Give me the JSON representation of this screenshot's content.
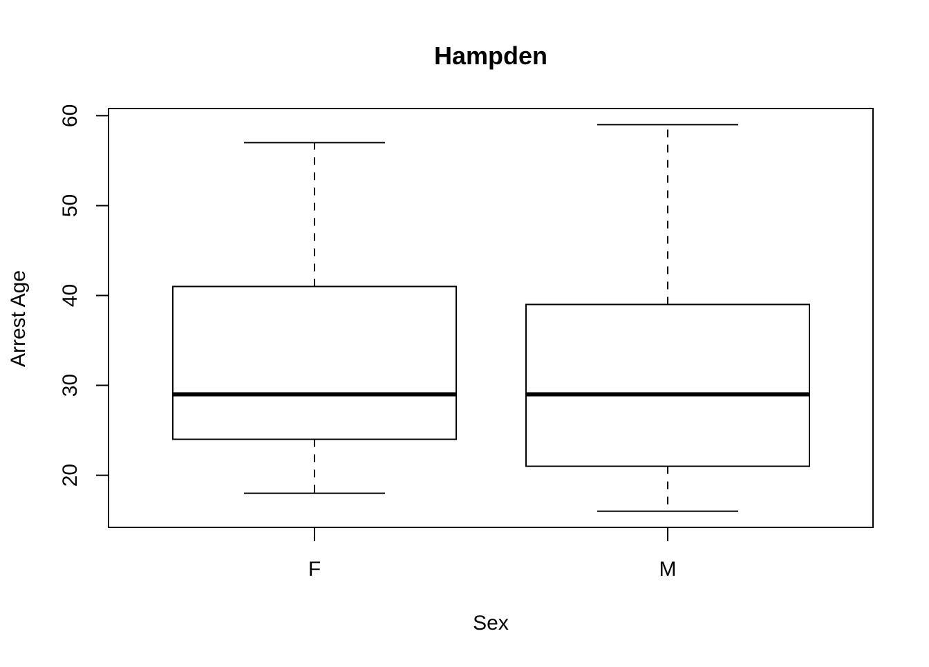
{
  "chart_data": {
    "type": "boxplot",
    "title": "Hampden",
    "xlabel": "Sex",
    "ylabel": "Arrest Age",
    "categories": [
      "F",
      "M"
    ],
    "boxes": [
      {
        "category": "F",
        "whisker_low": 18,
        "q1": 24,
        "median": 29,
        "q3": 41,
        "whisker_high": 57
      },
      {
        "category": "M",
        "whisker_low": 16,
        "q1": 21,
        "median": 29,
        "q3": 39,
        "whisker_high": 59
      }
    ],
    "yticks": [
      20,
      30,
      40,
      50,
      60
    ],
    "ylim": [
      14.2,
      60.8
    ],
    "grid": false,
    "legend": "none"
  }
}
